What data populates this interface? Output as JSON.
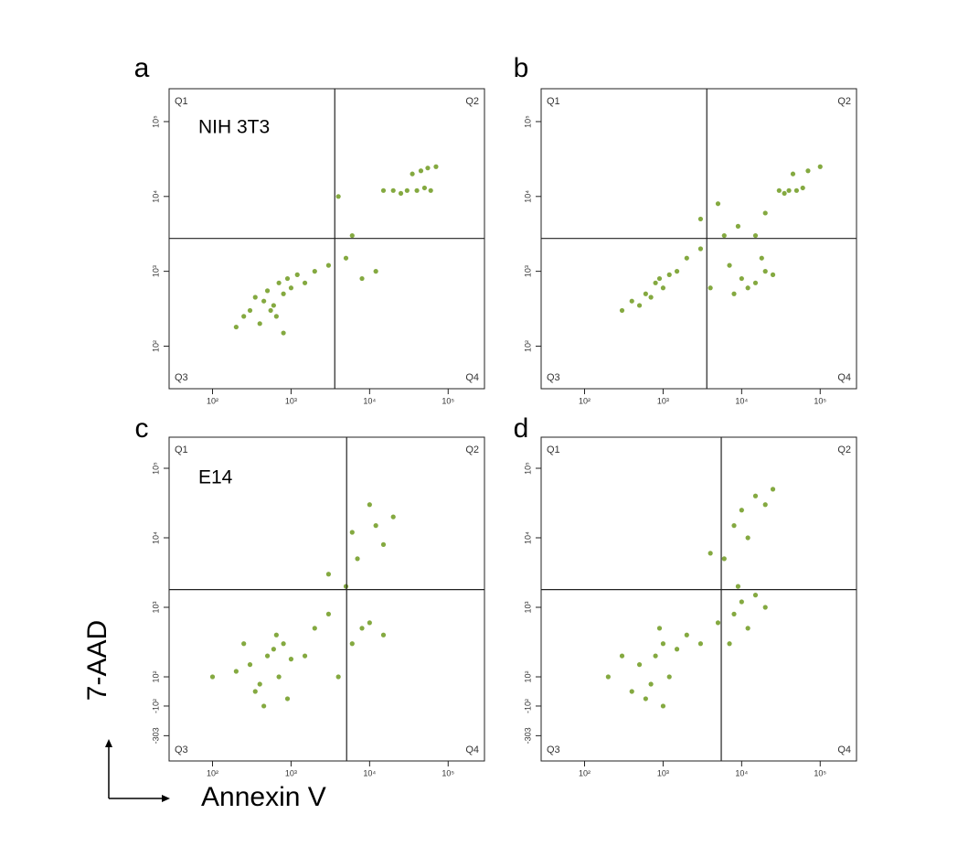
{
  "axis_labels": {
    "x": "Annexin V",
    "y": "7-AAD"
  },
  "chart_data": [
    {
      "type": "scatter",
      "panel": "a",
      "annotation": "NIH 3T3",
      "quadrant_labels": [
        "Q1",
        "Q2",
        "Q3",
        "Q4"
      ],
      "color": "#5b8c00",
      "xscale": "log",
      "yscale": "log",
      "xlim": [
        28,
        290000
      ],
      "ylim": [
        27,
        275000
      ],
      "xticks": [
        {
          "value": 100,
          "label": "10²"
        },
        {
          "value": 1000,
          "label": "10³"
        },
        {
          "value": 10000,
          "label": "10⁴"
        },
        {
          "value": 100000,
          "label": "10⁵"
        }
      ],
      "yticks": [
        {
          "value": 100,
          "label": "10²"
        },
        {
          "value": 1000,
          "label": "10³"
        },
        {
          "value": 10000,
          "label": "10⁴"
        },
        {
          "value": 100000,
          "label": "10⁵"
        }
      ],
      "gate": {
        "x": 3600,
        "y": 2750
      },
      "x": [
        300,
        450,
        600,
        800,
        1000,
        250,
        400,
        700,
        350,
        550,
        900,
        1200,
        200,
        500,
        650,
        2000,
        3000,
        5000,
        8000,
        12000,
        6000,
        15000,
        20000,
        30000,
        40000,
        50000,
        60000,
        25000,
        45000,
        70000,
        35000,
        55000,
        1500,
        800,
        4000
      ],
      "values": [
        300,
        400,
        350,
        500,
        600,
        250,
        200,
        700,
        450,
        300,
        800,
        900,
        180,
        550,
        250,
        1000,
        1200,
        1500,
        800,
        1000,
        3000,
        12000,
        12000,
        12000,
        12000,
        13000,
        12000,
        11000,
        22000,
        25000,
        20000,
        24000,
        700,
        150,
        10000
      ]
    },
    {
      "type": "scatter",
      "panel": "b",
      "quadrant_labels": [
        "Q1",
        "Q2",
        "Q3",
        "Q4"
      ],
      "color": "#5b8c00",
      "xscale": "log",
      "yscale": "log",
      "xlim": [
        28,
        290000
      ],
      "ylim": [
        27,
        275000
      ],
      "xticks": [
        {
          "value": 100,
          "label": "10²"
        },
        {
          "value": 1000,
          "label": "10³"
        },
        {
          "value": 10000,
          "label": "10⁴"
        },
        {
          "value": 100000,
          "label": "10⁵"
        }
      ],
      "yticks": [
        {
          "value": 100,
          "label": "10²"
        },
        {
          "value": 1000,
          "label": "10³"
        },
        {
          "value": 10000,
          "label": "10⁴"
        },
        {
          "value": 100000,
          "label": "10⁵"
        }
      ],
      "gate": {
        "x": 3600,
        "y": 2750
      },
      "x": [
        400,
        600,
        800,
        1000,
        500,
        700,
        1200,
        300,
        900,
        2000,
        3000,
        6000,
        10000,
        15000,
        20000,
        8000,
        12000,
        25000,
        18000,
        9000,
        30000,
        40000,
        50000,
        60000,
        35000,
        45000,
        70000,
        5000,
        4000,
        7000,
        3000,
        15000,
        20000,
        100000,
        1500
      ],
      "values": [
        400,
        500,
        700,
        600,
        350,
        450,
        900,
        300,
        800,
        1500,
        2000,
        3000,
        800,
        700,
        1000,
        500,
        600,
        900,
        1500,
        4000,
        12000,
        12000,
        12000,
        13000,
        11000,
        20000,
        22000,
        8000,
        600,
        1200,
        5000,
        3000,
        6000,
        25000,
        1000
      ]
    },
    {
      "type": "scatter",
      "panel": "c",
      "annotation": "E14",
      "quadrant_labels": [
        "Q1",
        "Q2",
        "Q3",
        "Q4"
      ],
      "color": "#5b8c00",
      "xscale": "log",
      "yscale": "biexponential",
      "xlim": [
        28,
        290000
      ],
      "ylim": [
        -476,
        280000
      ],
      "xticks": [
        {
          "value": 100,
          "label": "10²"
        },
        {
          "value": 1000,
          "label": "10³"
        },
        {
          "value": 10000,
          "label": "10⁴"
        },
        {
          "value": 100000,
          "label": "10⁵"
        }
      ],
      "yticks": [
        {
          "value": -303,
          "label": "-303"
        },
        {
          "value": -100,
          "label": "-10²"
        },
        {
          "value": 100,
          "label": "10²"
        },
        {
          "value": 1000,
          "label": "10³"
        },
        {
          "value": 10000,
          "label": "10⁴"
        },
        {
          "value": 100000,
          "label": "10⁵"
        }
      ],
      "gate": {
        "x": 5100,
        "y": 1800
      },
      "x": [
        300,
        500,
        700,
        400,
        600,
        800,
        1000,
        200,
        350,
        900,
        1500,
        250,
        450,
        650,
        100,
        2000,
        3000,
        6000,
        8000,
        10000,
        15000,
        5000,
        7000,
        12000,
        20000,
        6000,
        10000,
        15000,
        3000,
        4000
      ],
      "values": [
        150,
        200,
        100,
        50,
        250,
        300,
        180,
        120,
        0,
        -50,
        200,
        300,
        -100,
        400,
        100,
        500,
        800,
        300,
        500,
        600,
        400,
        2000,
        5000,
        15000,
        20000,
        12000,
        30000,
        8000,
        3000,
        100
      ]
    },
    {
      "type": "scatter",
      "panel": "d",
      "quadrant_labels": [
        "Q1",
        "Q2",
        "Q3",
        "Q4"
      ],
      "color": "#5b8c00",
      "xscale": "log",
      "yscale": "biexponential",
      "xlim": [
        28,
        290000
      ],
      "ylim": [
        -476,
        280000
      ],
      "xticks": [
        {
          "value": 100,
          "label": "10²"
        },
        {
          "value": 1000,
          "label": "10³"
        },
        {
          "value": 10000,
          "label": "10⁴"
        },
        {
          "value": 100000,
          "label": "10⁵"
        }
      ],
      "yticks": [
        {
          "value": -303,
          "label": "-303"
        },
        {
          "value": -100,
          "label": "-10²"
        },
        {
          "value": 100,
          "label": "10²"
        },
        {
          "value": 1000,
          "label": "10³"
        },
        {
          "value": 10000,
          "label": "10⁴"
        },
        {
          "value": 100000,
          "label": "10⁵"
        }
      ],
      "gate": {
        "x": 5500,
        "y": 1800
      },
      "x": [
        500,
        800,
        1000,
        1200,
        1500,
        700,
        600,
        2000,
        300,
        900,
        400,
        3000,
        5000,
        8000,
        10000,
        12000,
        15000,
        20000,
        7000,
        9000,
        6000,
        8000,
        10000,
        15000,
        20000,
        12000,
        25000,
        4000,
        200,
        1000
      ],
      "values": [
        150,
        200,
        300,
        100,
        250,
        50,
        -50,
        400,
        200,
        500,
        0,
        300,
        600,
        800,
        1200,
        500,
        1500,
        1000,
        300,
        2000,
        5000,
        15000,
        25000,
        40000,
        30000,
        10000,
        50000,
        6000,
        100,
        -100
      ]
    }
  ]
}
